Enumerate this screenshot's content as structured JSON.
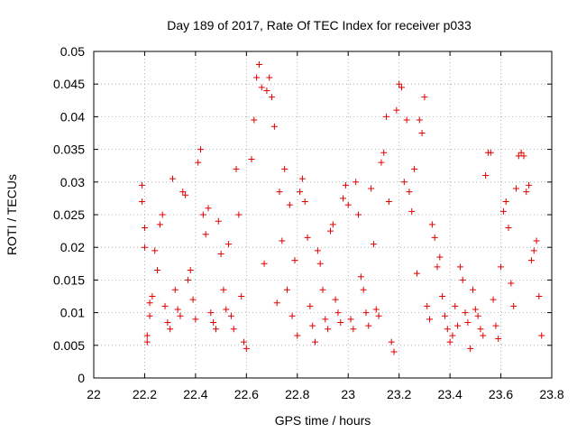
{
  "chart_data": {
    "type": "scatter",
    "title": "Day 189 of 2017, Rate Of TEC Index for receiver p033",
    "xlabel": "GPS time / hours",
    "ylabel": "ROTI / TECUs",
    "xlim": [
      22,
      23.8
    ],
    "ylim": [
      0,
      0.05
    ],
    "x_ticks": [
      "22",
      "22.2",
      "22.4",
      "22.6",
      "22.8",
      "23",
      "23.2",
      "23.4",
      "23.6",
      "23.8"
    ],
    "y_ticks": [
      "0",
      "0.005",
      "0.01",
      "0.015",
      "0.02",
      "0.025",
      "0.03",
      "0.035",
      "0.04",
      "0.045",
      "0.05"
    ],
    "grid": true,
    "marker": "+",
    "point_color": "#e00000",
    "series": [
      {
        "points": [
          [
            22.19,
            0.0295
          ],
          [
            22.19,
            0.027
          ],
          [
            22.2,
            0.023
          ],
          [
            22.2,
            0.02
          ],
          [
            22.21,
            0.0065
          ],
          [
            22.21,
            0.0055
          ],
          [
            22.22,
            0.0115
          ],
          [
            22.22,
            0.0095
          ],
          [
            22.23,
            0.0125
          ],
          [
            22.24,
            0.0195
          ],
          [
            22.25,
            0.0165
          ],
          [
            22.26,
            0.0235
          ],
          [
            22.27,
            0.025
          ],
          [
            22.28,
            0.011
          ],
          [
            22.29,
            0.0085
          ],
          [
            22.3,
            0.0075
          ],
          [
            22.31,
            0.0305
          ],
          [
            22.32,
            0.0135
          ],
          [
            22.33,
            0.0105
          ],
          [
            22.34,
            0.0095
          ],
          [
            22.35,
            0.0285
          ],
          [
            22.36,
            0.028
          ],
          [
            22.37,
            0.015
          ],
          [
            22.38,
            0.0165
          ],
          [
            22.39,
            0.012
          ],
          [
            22.4,
            0.009
          ],
          [
            22.41,
            0.033
          ],
          [
            22.42,
            0.035
          ],
          [
            22.43,
            0.025
          ],
          [
            22.44,
            0.022
          ],
          [
            22.45,
            0.026
          ],
          [
            22.46,
            0.01
          ],
          [
            22.47,
            0.0085
          ],
          [
            22.48,
            0.0075
          ],
          [
            22.49,
            0.024
          ],
          [
            22.5,
            0.019
          ],
          [
            22.51,
            0.0135
          ],
          [
            22.52,
            0.0105
          ],
          [
            22.53,
            0.0205
          ],
          [
            22.54,
            0.0095
          ],
          [
            22.55,
            0.0075
          ],
          [
            22.56,
            0.032
          ],
          [
            22.57,
            0.025
          ],
          [
            22.58,
            0.0125
          ],
          [
            22.59,
            0.0055
          ],
          [
            22.6,
            0.0045
          ],
          [
            22.62,
            0.0335
          ],
          [
            22.63,
            0.0395
          ],
          [
            22.64,
            0.046
          ],
          [
            22.65,
            0.048
          ],
          [
            22.66,
            0.0445
          ],
          [
            22.67,
            0.0175
          ],
          [
            22.68,
            0.044
          ],
          [
            22.69,
            0.046
          ],
          [
            22.7,
            0.043
          ],
          [
            22.71,
            0.0385
          ],
          [
            22.72,
            0.0115
          ],
          [
            22.73,
            0.0285
          ],
          [
            22.74,
            0.021
          ],
          [
            22.75,
            0.032
          ],
          [
            22.76,
            0.0135
          ],
          [
            22.77,
            0.0265
          ],
          [
            22.78,
            0.0095
          ],
          [
            22.79,
            0.018
          ],
          [
            22.8,
            0.0065
          ],
          [
            22.81,
            0.0285
          ],
          [
            22.82,
            0.0305
          ],
          [
            22.83,
            0.027
          ],
          [
            22.84,
            0.0215
          ],
          [
            22.85,
            0.011
          ],
          [
            22.86,
            0.008
          ],
          [
            22.87,
            0.0055
          ],
          [
            22.88,
            0.0195
          ],
          [
            22.89,
            0.0175
          ],
          [
            22.9,
            0.0135
          ],
          [
            22.91,
            0.009
          ],
          [
            22.92,
            0.0075
          ],
          [
            22.93,
            0.0225
          ],
          [
            22.94,
            0.0235
          ],
          [
            22.95,
            0.012
          ],
          [
            22.96,
            0.01
          ],
          [
            22.97,
            0.0085
          ],
          [
            22.98,
            0.0275
          ],
          [
            22.99,
            0.0295
          ],
          [
            23.0,
            0.0265
          ],
          [
            23.01,
            0.009
          ],
          [
            23.02,
            0.0075
          ],
          [
            23.03,
            0.03
          ],
          [
            23.04,
            0.025
          ],
          [
            23.05,
            0.0155
          ],
          [
            23.06,
            0.0135
          ],
          [
            23.07,
            0.01
          ],
          [
            23.08,
            0.008
          ],
          [
            23.09,
            0.029
          ],
          [
            23.1,
            0.0205
          ],
          [
            23.11,
            0.0105
          ],
          [
            23.12,
            0.0095
          ],
          [
            23.13,
            0.033
          ],
          [
            23.14,
            0.0345
          ],
          [
            23.15,
            0.04
          ],
          [
            23.16,
            0.027
          ],
          [
            23.17,
            0.0055
          ],
          [
            23.18,
            0.004
          ],
          [
            23.19,
            0.041
          ],
          [
            23.2,
            0.045
          ],
          [
            23.21,
            0.0445
          ],
          [
            23.22,
            0.03
          ],
          [
            23.23,
            0.0395
          ],
          [
            23.24,
            0.0285
          ],
          [
            23.25,
            0.0255
          ],
          [
            23.26,
            0.032
          ],
          [
            23.27,
            0.016
          ],
          [
            23.28,
            0.0395
          ],
          [
            23.29,
            0.0375
          ],
          [
            23.3,
            0.043
          ],
          [
            23.31,
            0.011
          ],
          [
            23.32,
            0.009
          ],
          [
            23.33,
            0.0235
          ],
          [
            23.34,
            0.0215
          ],
          [
            23.35,
            0.017
          ],
          [
            23.36,
            0.0185
          ],
          [
            23.37,
            0.0125
          ],
          [
            23.38,
            0.0095
          ],
          [
            23.39,
            0.0075
          ],
          [
            23.4,
            0.0055
          ],
          [
            23.41,
            0.0065
          ],
          [
            23.42,
            0.011
          ],
          [
            23.43,
            0.008
          ],
          [
            23.44,
            0.017
          ],
          [
            23.45,
            0.015
          ],
          [
            23.46,
            0.01
          ],
          [
            23.47,
            0.0085
          ],
          [
            23.48,
            0.0045
          ],
          [
            23.49,
            0.0135
          ],
          [
            23.5,
            0.0105
          ],
          [
            23.51,
            0.0095
          ],
          [
            23.52,
            0.0075
          ],
          [
            23.53,
            0.0065
          ],
          [
            23.54,
            0.031
          ],
          [
            23.55,
            0.0345
          ],
          [
            23.56,
            0.0345
          ],
          [
            23.57,
            0.012
          ],
          [
            23.58,
            0.008
          ],
          [
            23.59,
            0.006
          ],
          [
            23.6,
            0.017
          ],
          [
            23.61,
            0.0255
          ],
          [
            23.62,
            0.027
          ],
          [
            23.63,
            0.023
          ],
          [
            23.64,
            0.0145
          ],
          [
            23.65,
            0.011
          ],
          [
            23.66,
            0.029
          ],
          [
            23.67,
            0.034
          ],
          [
            23.68,
            0.0345
          ],
          [
            23.69,
            0.034
          ],
          [
            23.7,
            0.0285
          ],
          [
            23.71,
            0.0295
          ],
          [
            23.72,
            0.018
          ],
          [
            23.73,
            0.0195
          ],
          [
            23.74,
            0.021
          ],
          [
            23.75,
            0.0125
          ],
          [
            23.76,
            0.0065
          ]
        ]
      }
    ]
  }
}
